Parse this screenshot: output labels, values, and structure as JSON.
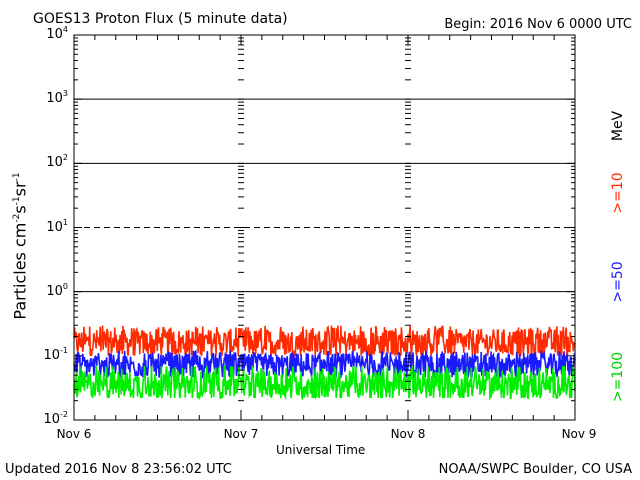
{
  "header": {
    "title": "GOES13 Proton Flux (5 minute data)",
    "begin": "Begin: 2016 Nov 6 0000 UTC"
  },
  "footer": {
    "updated": "Updated 2016 Nov  8 23:56:02 UTC",
    "credit": "NOAA/SWPC Boulder, CO USA"
  },
  "chart_data": {
    "type": "line",
    "title": "GOES13 Proton Flux (5 minute data)",
    "xlabel": "Universal Time",
    "ylabel_base": "Particles cm",
    "ylabel_sup1": "-2",
    "ylabel_mid1": "s",
    "ylabel_sup2": "-1",
    "ylabel_mid2": "sr",
    "ylabel_sup3": "-1",
    "yscale": "log",
    "ylim": [
      0.01,
      10000
    ],
    "xlim": [
      "2016-11-06 00:00",
      "2016-11-09 00:00"
    ],
    "x_ticks": [
      "Nov 6",
      "Nov 7",
      "Nov 8",
      "Nov 9"
    ],
    "y_ticks": [
      {
        "base": "10",
        "exp": "-2"
      },
      {
        "base": "10",
        "exp": "-1"
      },
      {
        "base": "10",
        "exp": "0"
      },
      {
        "base": "10",
        "exp": "1"
      },
      {
        "base": "10",
        "exp": "2"
      },
      {
        "base": "10",
        "exp": "3"
      },
      {
        "base": "10",
        "exp": "4"
      }
    ],
    "unit_label": "MeV",
    "threshold_lines": [
      {
        "value": 1,
        "style": "solid"
      },
      {
        "value": 10,
        "style": "dashed"
      },
      {
        "value": 100,
        "style": "solid"
      },
      {
        "value": 1000,
        "style": "solid"
      }
    ],
    "series": [
      {
        "name": ">=10",
        "color": "#ff2a00",
        "approx_level": 0.16,
        "range": [
          0.1,
          0.3
        ]
      },
      {
        "name": ">=50",
        "color": "#1a1aff",
        "approx_level": 0.07,
        "range": [
          0.045,
          0.12
        ]
      },
      {
        "name": ">=100",
        "color": "#00ee00",
        "approx_level": 0.035,
        "range": [
          0.022,
          0.07
        ]
      }
    ]
  }
}
